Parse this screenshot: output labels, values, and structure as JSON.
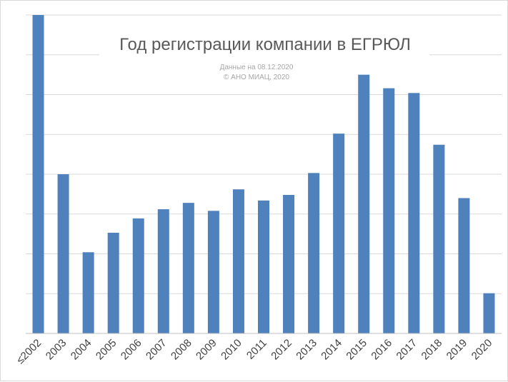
{
  "chart_data": {
    "type": "bar",
    "title": "Год регистрации компании в ЕГРЮЛ",
    "subtitle_lines": [
      "Данные на 08.12.2020",
      "© АНО МИАЦ, 2020"
    ],
    "categories": [
      "≤2002",
      "2003",
      "2004",
      "2005",
      "2006",
      "2007",
      "2008",
      "2009",
      "2010",
      "2011",
      "2012",
      "2013",
      "2014",
      "2015",
      "2016",
      "2017",
      "2018",
      "2019",
      "2020"
    ],
    "values": [
      8.0,
      4.0,
      2.04,
      2.53,
      2.89,
      3.12,
      3.28,
      3.08,
      3.62,
      3.34,
      3.48,
      4.03,
      5.02,
      6.5,
      6.16,
      6.04,
      4.74,
      3.4,
      1.01
    ],
    "ylim": [
      0,
      8
    ],
    "grid": true,
    "legend": "none",
    "colors": {
      "bar": "#4f81bd"
    }
  }
}
